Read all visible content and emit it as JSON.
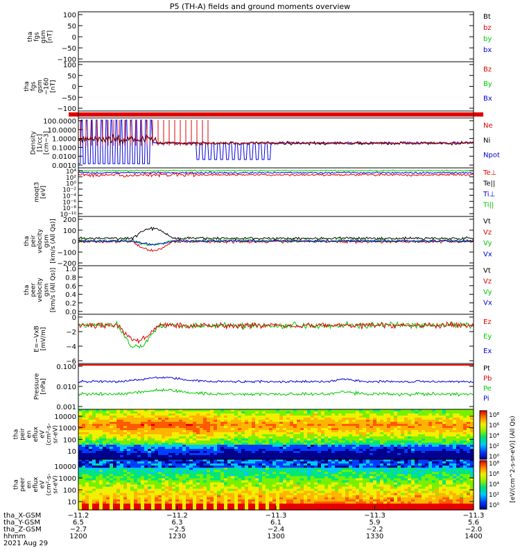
{
  "title": "P5 (TH-A) fields and ground moments overview",
  "colors": {
    "black": "#000000",
    "red": "#e00000",
    "green": "#00c800",
    "blue": "#0000e0",
    "lime": "#22dd22"
  },
  "panels": [
    {
      "ylabel": [
        "tha",
        "fgs",
        "gsm",
        "[nT]"
      ],
      "ticks": [
        "100",
        "50",
        "0",
        "−50",
        "−100"
      ],
      "legend": [
        {
          "t": "Bt",
          "c": "black"
        },
        {
          "t": "bz",
          "c": "red"
        },
        {
          "t": "by",
          "c": "green"
        },
        {
          "t": "bx",
          "c": "blue"
        }
      ]
    },
    {
      "ylabel": [
        "tha",
        "fgs",
        "gsm",
        "−160",
        "[nT]"
      ],
      "ticks": [
        "100",
        "50",
        "0",
        "−50",
        "−100"
      ],
      "legend": [
        {
          "t": "Bz",
          "c": "red"
        },
        {
          "t": "By",
          "c": "green"
        },
        {
          "t": "Bx",
          "c": "blue"
        }
      ]
    },
    {
      "ylabel": [],
      "ticks": [],
      "legend": []
    },
    {
      "ylabel": [
        "Density",
        "[1/cc]",
        "[cm−3]"
      ],
      "ticks": [
        "100.0000",
        "10.0000",
        "1.0000",
        "0.1000",
        "0.0100",
        "0.0010"
      ],
      "legend": [
        {
          "t": "Ne",
          "c": "red"
        },
        {
          "t": "Ni",
          "c": "black"
        },
        {
          "t": "Npot",
          "c": "blue"
        }
      ]
    },
    {
      "ylabel": [
        "moqt3",
        "[eV]"
      ],
      "ticks": [
        "10⁴",
        "10²",
        "10⁰",
        "10⁻²",
        "10⁻⁴",
        "10⁻⁶",
        "10⁻⁸",
        "10⁻¹⁰"
      ],
      "legend": [
        {
          "t": "Te⊥",
          "c": "red"
        },
        {
          "t": "Te||",
          "c": "black"
        },
        {
          "t": "Ti⊥",
          "c": "blue"
        },
        {
          "t": "Ti||",
          "c": "green"
        }
      ]
    },
    {
      "ylabel": [
        "tha",
        "peir",
        "velocity",
        "gsm",
        "[km/s (All Qs)]"
      ],
      "ticks": [
        "200",
        "100",
        "0",
        "−100",
        "−200"
      ],
      "legend": [
        {
          "t": "Vt",
          "c": "black"
        },
        {
          "t": "Vz",
          "c": "red"
        },
        {
          "t": "Vy",
          "c": "green"
        },
        {
          "t": "Vx",
          "c": "blue"
        }
      ]
    },
    {
      "ylabel": [
        "tha",
        "peer",
        "velocity",
        "gsm",
        "[km/s (All Qs)]"
      ],
      "ticks": [
        "1.0",
        "0.8",
        "0.6",
        "0.4",
        "0.2",
        "0.0"
      ],
      "legend": [
        {
          "t": "Vt",
          "c": "black"
        },
        {
          "t": "Vz",
          "c": "red"
        },
        {
          "t": "Vy",
          "c": "green"
        },
        {
          "t": "Vx",
          "c": "blue"
        }
      ]
    },
    {
      "ylabel": [
        "E=−VxB",
        "[mV/m]"
      ],
      "ticks": [
        "0",
        "−2",
        "−4",
        "−6"
      ],
      "legend": [
        {
          "t": "Ez",
          "c": "red"
        },
        {
          "t": "Ey",
          "c": "green"
        },
        {
          "t": "Ex",
          "c": "blue"
        }
      ]
    },
    {
      "ylabel": [
        "Pressure",
        "[nPa]"
      ],
      "ticks": [
        "0.100",
        "0.010",
        "0.001"
      ],
      "legend": [
        {
          "t": "Pt",
          "c": "black"
        },
        {
          "t": "Pb",
          "c": "red"
        },
        {
          "t": "Pe",
          "c": "green"
        },
        {
          "t": "Pi",
          "c": "blue"
        }
      ]
    },
    {
      "ylabel": [
        "tha",
        "peir",
        "en",
        "eflux",
        "eV",
        "(cm²-s-",
        "sr-eV)"
      ],
      "ticks": [
        "10000",
        "1000",
        "100",
        "10"
      ],
      "legend": []
    },
    {
      "ylabel": [
        "tha",
        "peer",
        "en",
        "eflux",
        "eV",
        "(cm²-s-",
        "sr-eV)"
      ],
      "ticks": [
        "10000",
        "1000",
        "100",
        "10"
      ],
      "legend": []
    }
  ],
  "colorbar": {
    "ticks": [
      "10⁸",
      "10⁶",
      "10⁴",
      "10²",
      "10⁰",
      "10⁸",
      "10⁶",
      "10⁴",
      "10²",
      "10⁰"
    ],
    "label": "[eV/(cm^2-s-sr-eV)] (All Qs)"
  },
  "xaxis": {
    "rows": [
      {
        "label": "tha_X-GSM",
        "vals": [
          "−11.2",
          "−11.2",
          "−11.3",
          "−11.3",
          "−11.3"
        ]
      },
      {
        "label": "tha_Y-GSM",
        "vals": [
          "6.5",
          "6.3",
          "6.1",
          "5.9",
          "5.6"
        ]
      },
      {
        "label": "tha_Z-GSM",
        "vals": [
          "−2.7",
          "−2.5",
          "−2.4",
          "−2.2",
          "−2.0"
        ]
      },
      {
        "label": "hhmm",
        "vals": [
          "1200",
          "1230",
          "1300",
          "1330",
          "1400"
        ]
      }
    ],
    "date": "2021 Aug 29"
  },
  "chart_data": {
    "type": "line",
    "title": "P5 (TH-A) fields and ground moments overview",
    "date": "2021 Aug 29",
    "x_time_hhmm": [
      "1200",
      "1230",
      "1300",
      "1330",
      "1400"
    ],
    "x_tha_X_GSM": [
      -11.2,
      -11.2,
      -11.3,
      -11.3,
      -11.3
    ],
    "x_tha_Y_GSM": [
      6.5,
      6.3,
      6.1,
      5.9,
      5.6
    ],
    "x_tha_Z_GSM": [
      -2.7,
      -2.5,
      -2.4,
      -2.2,
      -2.0
    ],
    "panels": [
      {
        "ylabel": "tha fgs gsm [nT]",
        "ylim": [
          -100,
          100
        ],
        "series": []
      },
      {
        "ylabel": "tha fgs gsm −160 [nT]",
        "ylim": [
          -120,
          120
        ],
        "series": []
      },
      {
        "ylabel": "Density [1/cc] [cm−3]",
        "scale": "log",
        "ylim": [
          0.0005,
          300
        ],
        "series": [
          {
            "name": "Ne",
            "level": 0.5
          },
          {
            "name": "Ni",
            "level": 0.5
          },
          {
            "name": "Npot",
            "low": 0.001,
            "high": 100
          }
        ]
      },
      {
        "ylabel": "moqt3 [eV]",
        "scale": "log",
        "series": [
          {
            "name": "Te⊥",
            "level": 1000
          },
          {
            "name": "Ti||",
            "level": 3000
          }
        ]
      },
      {
        "ylabel": "tha peir velocity gsm [km/s (All Qs)]",
        "ylim": [
          -200,
          200
        ],
        "series": [
          {
            "name": "Vt",
            "peak": 150
          },
          {
            "name": "Vz",
            "min": -110
          },
          {
            "name": "Vy"
          },
          {
            "name": "Vx"
          }
        ]
      },
      {
        "ylabel": "tha peer velocity gsm [km/s (All Qs)]",
        "ylim": [
          0,
          1
        ],
        "series": []
      },
      {
        "ylabel": "E=−VxB [mV/m]",
        "ylim": [
          -6,
          1.2
        ],
        "series": [
          {
            "name": "Ez",
            "min": -3.5
          },
          {
            "name": "Ey",
            "min": -4.8
          }
        ]
      },
      {
        "ylabel": "Pressure [nPa]",
        "scale": "log",
        "ylim": [
          0.001,
          0.3
        ],
        "series": [
          {
            "name": "Pi",
            "range": [
              0.02,
              0.08
            ]
          },
          {
            "name": "Pe",
            "range": [
              0.003,
              0.008
            ]
          }
        ]
      },
      {
        "ylabel": "tha peir en eflux eV (cm²-s-sr-eV)",
        "type": "heatmap",
        "ylim": [
          10,
          20000
        ]
      },
      {
        "ylabel": "tha peer en eflux eV (cm²-s-sr-eV)",
        "type": "heatmap",
        "ylim": [
          10,
          20000
        ]
      }
    ]
  }
}
